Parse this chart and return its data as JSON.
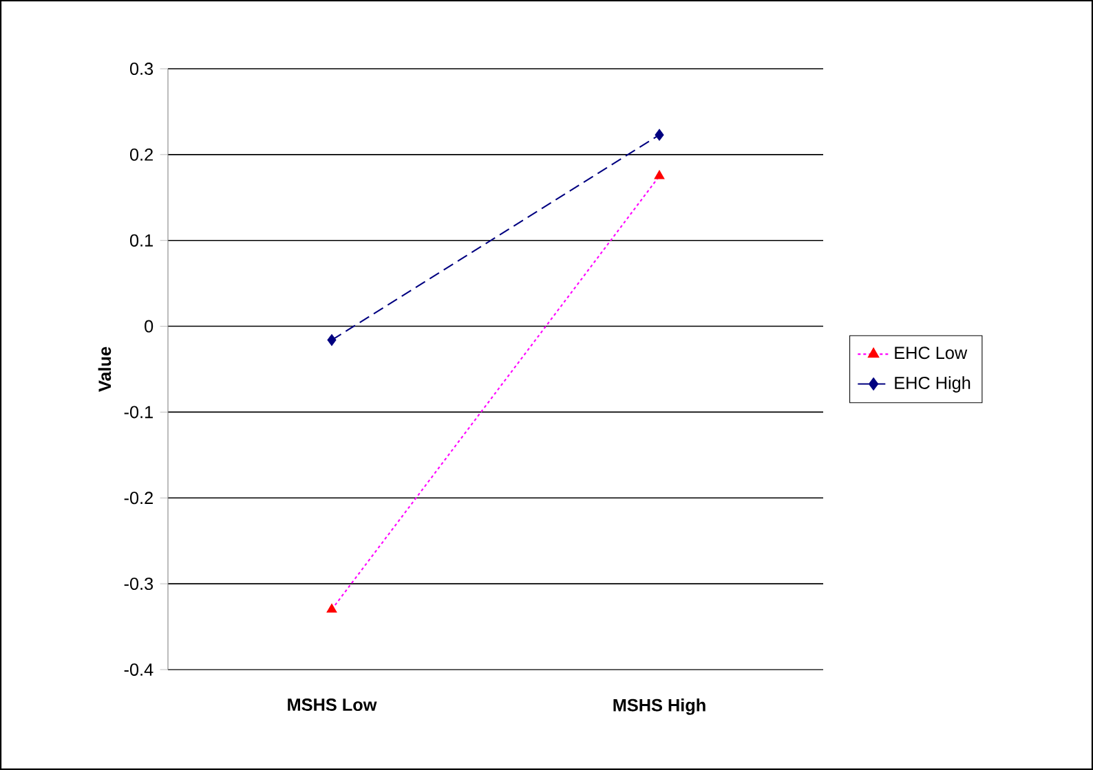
{
  "chart_data": {
    "type": "line",
    "ylabel": "Value",
    "categories": [
      "MSHS Low",
      "MSHS High"
    ],
    "series": [
      {
        "name": "EHC Low",
        "color": "#ff00ff",
        "colors": [
          "#ff0000",
          "#ff0000"
        ],
        "marker": "triangle",
        "line_style": "dotted",
        "values": [
          -0.33,
          0.175
        ]
      },
      {
        "name": "EHC High",
        "color": "#000080",
        "colors": [
          "#000080",
          "#000080"
        ],
        "marker": "diamond",
        "line_style": "dashed",
        "values": [
          -0.016,
          0.223
        ]
      }
    ],
    "ylim": [
      -0.4,
      0.3
    ],
    "yticks": [
      -0.4,
      -0.3,
      -0.2,
      -0.1,
      0,
      0.1,
      0.2,
      0.3
    ],
    "grid": "y",
    "legend": "right"
  }
}
